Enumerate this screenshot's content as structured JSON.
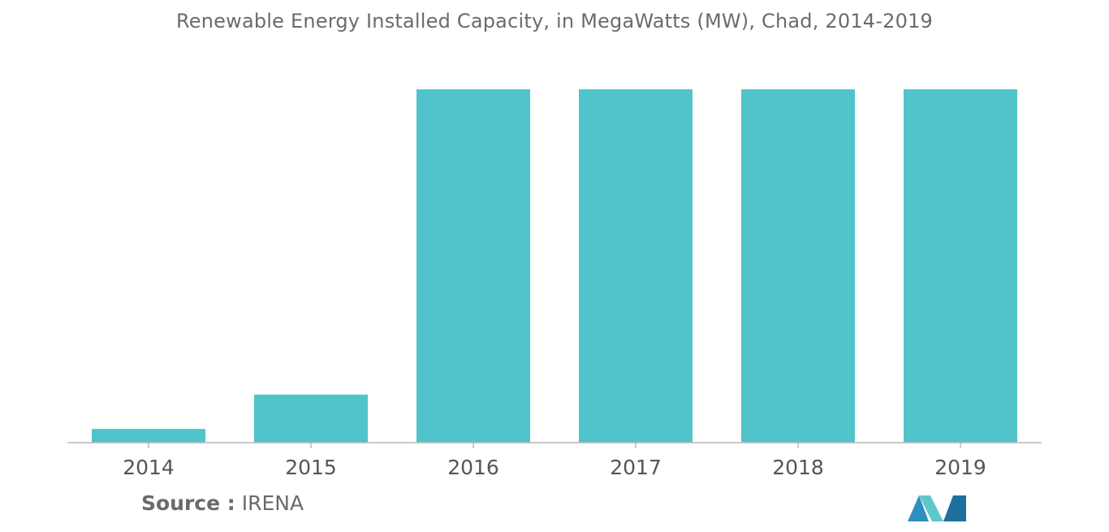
{
  "chart_data": {
    "type": "bar",
    "title": "Renewable Energy Installed Capacity, in MegaWatts (MW), Chad, 2014-2019",
    "categories": [
      "2014",
      "2015",
      "2016",
      "2017",
      "2018",
      "2019"
    ],
    "values": [
      0.4,
      1.4,
      10.3,
      10.3,
      10.3,
      10.3
    ],
    "xlabel": "",
    "ylabel": "",
    "ylim": [
      0,
      10.3
    ],
    "grid": false,
    "legend": "none",
    "bar_color": "#51c3ca",
    "axis_color": "#b8b8b8"
  },
  "source": {
    "label": "Source :",
    "value": "IRENA"
  },
  "logo": {
    "icon": "mordor-intelligence-logo-icon",
    "colors": [
      "#2e8fbf",
      "#5cc8c9",
      "#1f6f9e"
    ]
  }
}
